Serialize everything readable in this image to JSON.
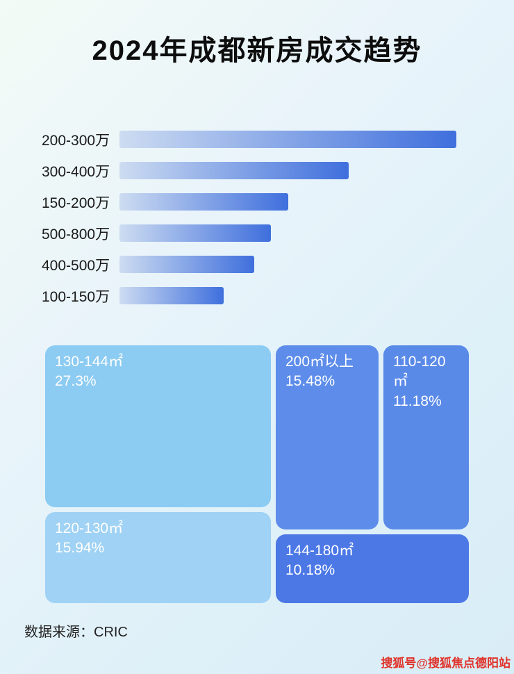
{
  "page": {
    "title": "2024年成都新房成交趋势",
    "source_label": "数据来源：CRIC",
    "watermark": "搜狐号@搜狐焦点德阳站"
  },
  "colors": {
    "bar_gradient_start": "#cddcf1",
    "bar_gradient_end": "#3f6fdd",
    "treemap_130_144": "#8ccbf2",
    "treemap_200_plus": "#5d8cea",
    "treemap_110_120": "#5a8ae8",
    "treemap_120_130": "#9fd2f4",
    "treemap_144_180": "#4c78e6",
    "watermark_red": "#e0322a"
  },
  "chart_data": [
    {
      "type": "bar",
      "orientation": "horizontal",
      "title": "2024年成都新房成交趋势",
      "categories": [
        "200-300万",
        "300-400万",
        "150-200万",
        "500-800万",
        "400-500万",
        "100-150万"
      ],
      "values": [
        100,
        68,
        50,
        45,
        40,
        31
      ],
      "value_note": "bar lengths relative to longest bar (percent); no numeric axis or data labels shown in image",
      "xlabel": "",
      "ylabel": "",
      "grid": false,
      "legend": false
    },
    {
      "type": "treemap",
      "items": [
        {
          "label": "130-144㎡",
          "value": 27.3,
          "display": "27.3%"
        },
        {
          "label": "200㎡以上",
          "value": 15.48,
          "display": "15.48%"
        },
        {
          "label": "110-120㎡",
          "value": 11.18,
          "display": "11.18%"
        },
        {
          "label": "120-130㎡",
          "value": 15.94,
          "display": "15.94%"
        },
        {
          "label": "144-180㎡",
          "value": 10.18,
          "display": "10.18%"
        }
      ]
    }
  ]
}
